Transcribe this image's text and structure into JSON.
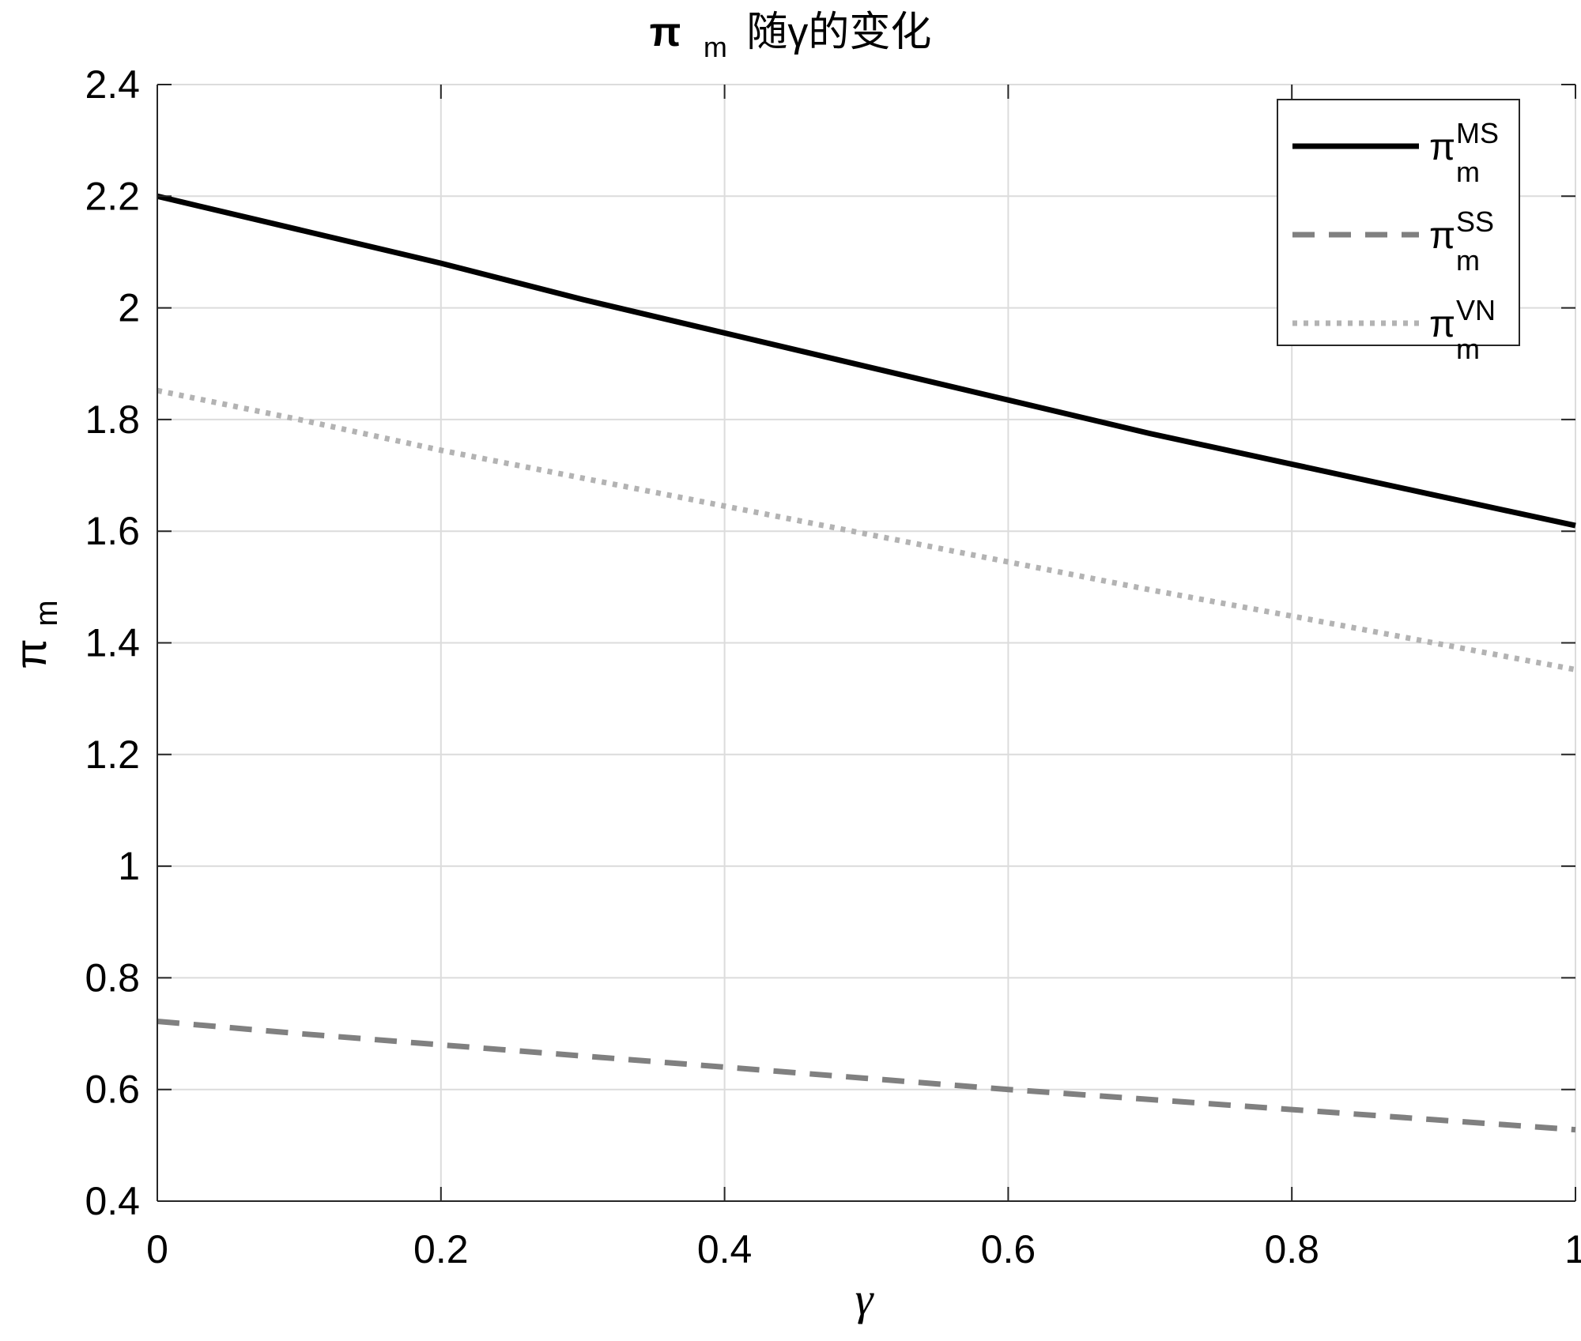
{
  "chart_data": {
    "type": "line",
    "title": {
      "main": "π",
      "sub": "m",
      "rest": "随γ的变化"
    },
    "xlabel": "γ",
    "ylabel": {
      "main": "π",
      "sub": "m"
    },
    "xlim": [
      0,
      1
    ],
    "ylim": [
      0.4,
      2.4
    ],
    "xticks": [
      "0",
      "0.2",
      "0.4",
      "0.6",
      "0.8",
      "1"
    ],
    "yticks": [
      "0.4",
      "0.6",
      "0.8",
      "1",
      "1.2",
      "1.4",
      "1.6",
      "1.8",
      "2",
      "2.2",
      "2.4"
    ],
    "grid": true,
    "legend_position": "top-right",
    "series": [
      {
        "name": {
          "main": "π",
          "sub": "m",
          "sup": "MS"
        },
        "style": "solid",
        "color": "#000000",
        "x": [
          0,
          0.1,
          0.2,
          0.3,
          0.4,
          0.5,
          0.6,
          0.7,
          0.8,
          0.9,
          1.0
        ],
        "y": [
          2.2,
          2.14,
          2.08,
          2.015,
          1.955,
          1.895,
          1.835,
          1.775,
          1.72,
          1.665,
          1.61
        ]
      },
      {
        "name": {
          "main": "π",
          "sub": "m",
          "sup": "SS"
        },
        "style": "dashed",
        "color": "#808080",
        "x": [
          0,
          0.1,
          0.2,
          0.3,
          0.4,
          0.5,
          0.6,
          0.7,
          0.8,
          0.9,
          1.0
        ],
        "y": [
          0.722,
          0.7,
          0.68,
          0.66,
          0.64,
          0.62,
          0.6,
          0.582,
          0.564,
          0.546,
          0.528
        ]
      },
      {
        "name": {
          "main": "π",
          "sub": "m",
          "sup": "VN"
        },
        "style": "dotted",
        "color": "#b3b3b3",
        "x": [
          0,
          0.1,
          0.2,
          0.3,
          0.4,
          0.5,
          0.6,
          0.7,
          0.8,
          0.9,
          1.0
        ],
        "y": [
          1.852,
          1.8,
          1.745,
          1.695,
          1.645,
          1.595,
          1.545,
          1.495,
          1.448,
          1.4,
          1.352
        ]
      }
    ]
  }
}
